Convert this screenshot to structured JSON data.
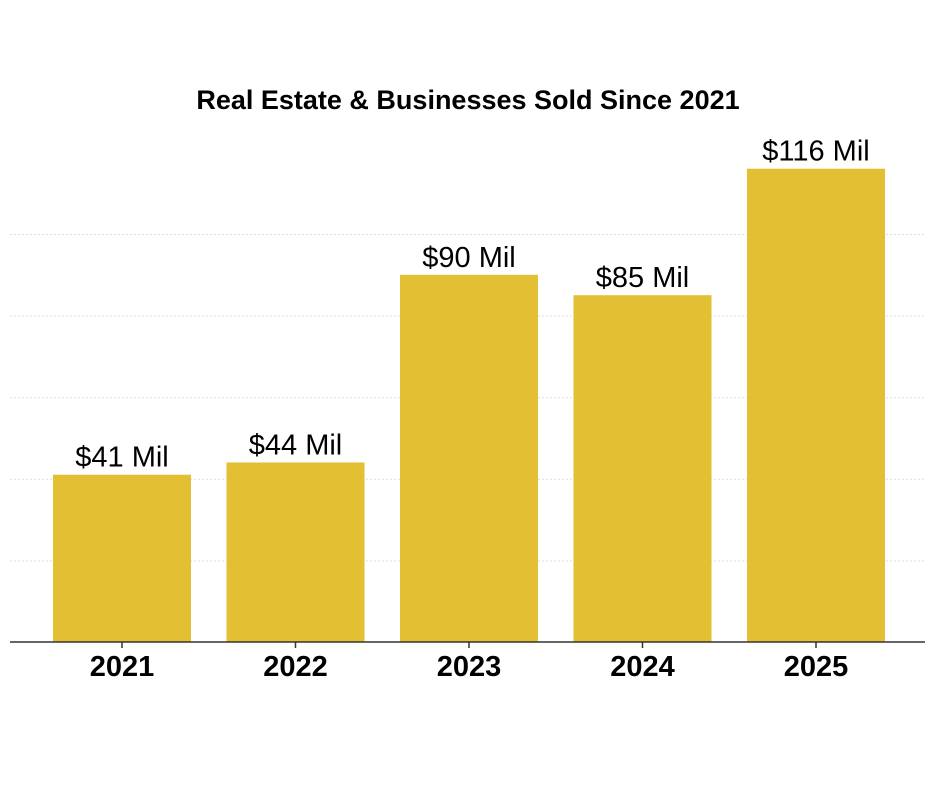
{
  "chart_data": {
    "type": "bar",
    "title": "Real Estate & Businesses Sold Since 2021",
    "xlabel": "",
    "ylabel": "",
    "categories": [
      "2021",
      "2022",
      "2023",
      "2024",
      "2025"
    ],
    "values": [
      41,
      44,
      90,
      85,
      116
    ],
    "data_labels": [
      "$41 Mil",
      "$44 Mil",
      "$90 Mil",
      "$85 Mil",
      "$116 Mil"
    ],
    "unit": "Mil",
    "ylim": [
      0,
      125
    ],
    "grid": true,
    "grid_step": 20,
    "bar_color": "#E2BF33",
    "grid_color": "#DDDDDD",
    "axis_color": "#333333"
  }
}
